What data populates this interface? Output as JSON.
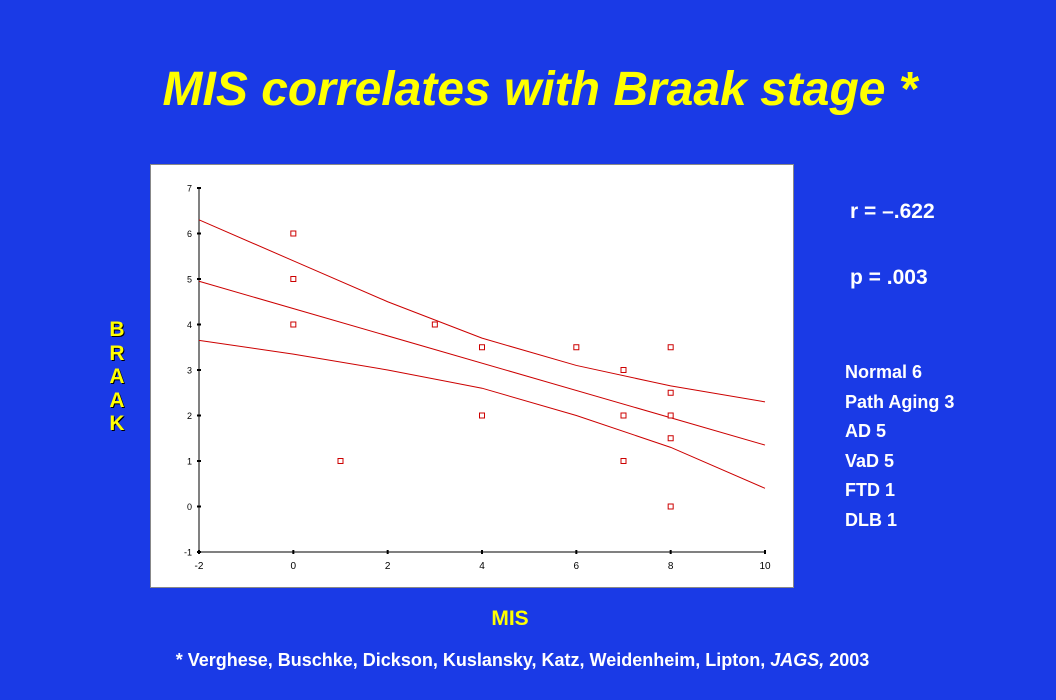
{
  "slide": {
    "title": "MIS correlates with Braak stage *",
    "stats": {
      "r": "r = –.622",
      "p": "p = .003"
    },
    "group_counts": [
      "Normal 6",
      "Path Aging 3",
      "AD 5",
      "VaD 5",
      "FTD 1",
      "DLB 1"
    ],
    "citation": {
      "prefix": "* Verghese, Buschke, Dickson, Kuslansky, Katz, Weidenheim, Lipton, ",
      "journal": "JAGS,",
      "suffix": " 2003"
    }
  },
  "colors": {
    "background": "#1a3ae6",
    "title": "#ffff00",
    "labels": "#ffff00",
    "text": "#ffffff",
    "marker": "#cc0000",
    "lines": "#cc0000"
  },
  "chart_data": {
    "type": "scatter",
    "title": "",
    "xlabel": "MIS",
    "ylabel": "BRAAK",
    "xlim": [
      -2,
      10
    ],
    "ylim": [
      -1,
      7
    ],
    "xticks": [
      -2,
      0,
      2,
      4,
      6,
      8,
      10
    ],
    "yticks": [
      -1,
      0,
      1,
      2,
      3,
      4,
      5,
      6,
      7
    ],
    "grid": false,
    "points": [
      {
        "x": 0,
        "y": 6
      },
      {
        "x": 0,
        "y": 5
      },
      {
        "x": 0,
        "y": 4
      },
      {
        "x": 1,
        "y": 1
      },
      {
        "x": 3,
        "y": 4
      },
      {
        "x": 4,
        "y": 3.5
      },
      {
        "x": 4,
        "y": 2
      },
      {
        "x": 6,
        "y": 3.5
      },
      {
        "x": 7,
        "y": 3
      },
      {
        "x": 7,
        "y": 2
      },
      {
        "x": 7,
        "y": 1
      },
      {
        "x": 8,
        "y": 3.5
      },
      {
        "x": 8,
        "y": 2.5
      },
      {
        "x": 8,
        "y": 2
      },
      {
        "x": 8,
        "y": 1.5
      },
      {
        "x": 8,
        "y": 0
      }
    ],
    "fit_line": [
      [
        -2,
        4.95
      ],
      [
        10,
        1.35
      ]
    ],
    "ci_upper": [
      [
        -2,
        6.3
      ],
      [
        0,
        5.4
      ],
      [
        2,
        4.5
      ],
      [
        4,
        3.7
      ],
      [
        6,
        3.1
      ],
      [
        8,
        2.65
      ],
      [
        10,
        2.3
      ]
    ],
    "ci_lower": [
      [
        -2,
        3.65
      ],
      [
        0,
        3.35
      ],
      [
        2,
        3.0
      ],
      [
        4,
        2.6
      ],
      [
        6,
        2.0
      ],
      [
        8,
        1.3
      ],
      [
        10,
        0.4
      ]
    ]
  }
}
